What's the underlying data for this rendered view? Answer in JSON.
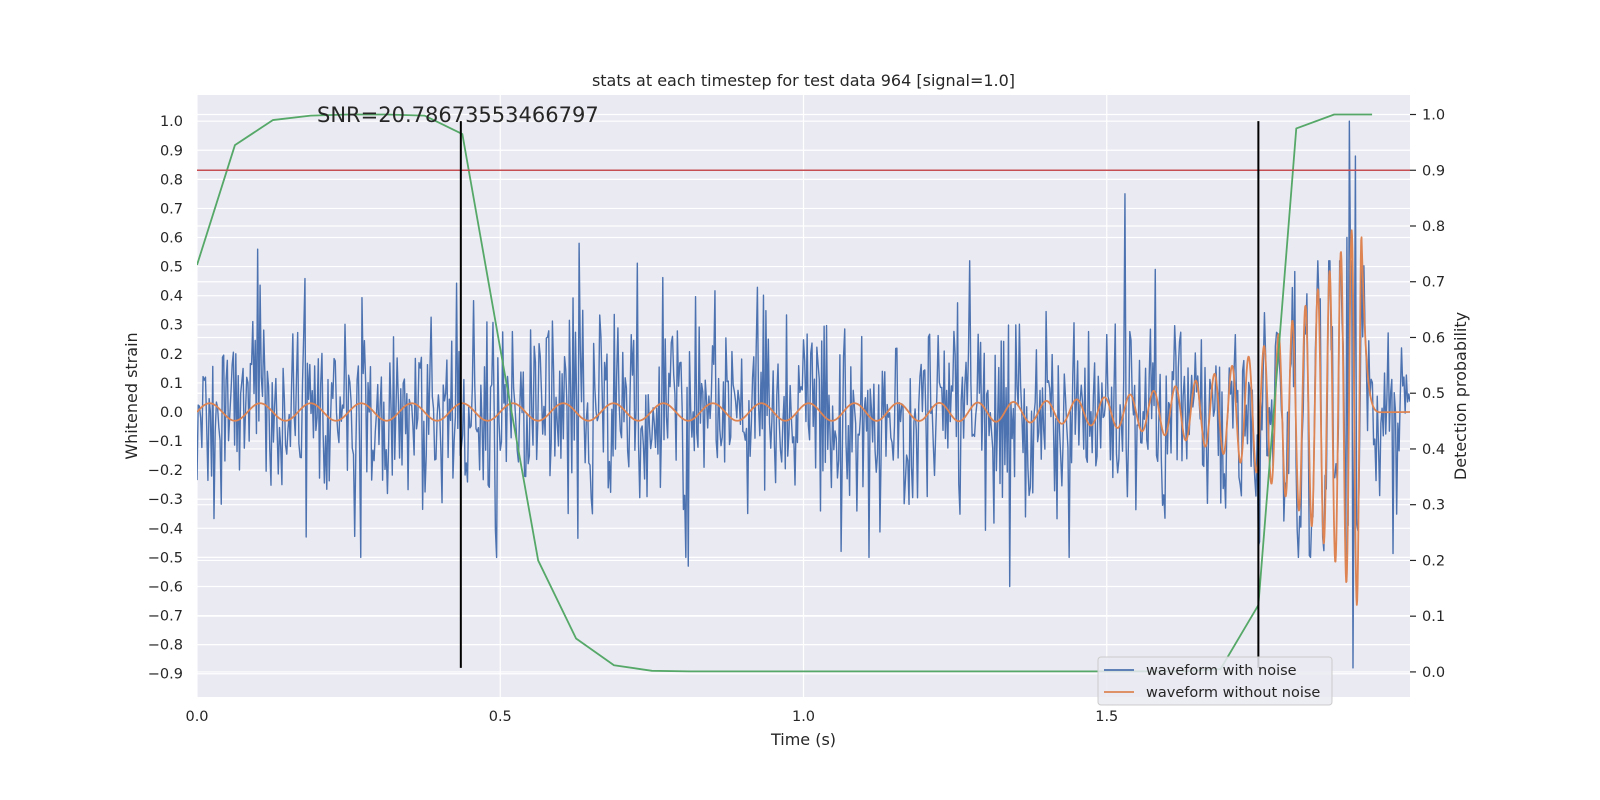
{
  "chart_data": {
    "type": "line",
    "title": "stats at each timestep for test data 964 [signal=1.0]",
    "annotation": "SNR=20.78673553466797",
    "xlabel": "Time (s)",
    "ylabel_left": "Whitened strain",
    "ylabel_right": "Detection probability",
    "xlim": [
      0,
      2.0
    ],
    "ylim_left": [
      -0.98,
      1.09
    ],
    "ylim_right": [
      -0.045,
      1.035
    ],
    "grid": true,
    "legend_placement": "lower-right",
    "x_ticks": [
      0.0,
      0.5,
      1.0,
      1.5
    ],
    "x_tick_labels": [
      "0.0",
      "0.5",
      "1.0",
      "1.5"
    ],
    "y_left_ticks": [
      1.0,
      0.9,
      0.8,
      0.7,
      0.6,
      0.5,
      0.4,
      0.3,
      0.2,
      0.1,
      0.0,
      -0.1,
      -0.2,
      -0.3,
      -0.4,
      -0.5,
      -0.6,
      -0.7,
      -0.8,
      -0.9
    ],
    "y_left_tick_labels": [
      "1.0",
      "0.9",
      "0.8",
      "0.7",
      "0.6",
      "0.5",
      "0.4",
      "0.3",
      "0.2",
      "0.1",
      "0.0",
      "−0.1",
      "−0.2",
      "−0.3",
      "−0.4",
      "−0.5",
      "−0.6",
      "−0.7",
      "−0.8",
      "−0.9"
    ],
    "y_right_ticks": [
      1.0,
      0.9,
      0.8,
      0.7,
      0.6,
      0.5,
      0.4,
      0.3,
      0.2,
      0.1,
      0.0
    ],
    "y_right_tick_labels": [
      "1.0",
      "0.9",
      "0.8",
      "0.7",
      "0.6",
      "0.5",
      "0.4",
      "0.3",
      "0.2",
      "0.1",
      "0.0"
    ],
    "threshold_line": {
      "axis": "right",
      "value": 0.9,
      "color": "#c44e52"
    },
    "vertical_lines": [
      {
        "x": 0.435,
        "y_range": [
          -0.88,
          1.0
        ],
        "color": "#000000"
      },
      {
        "x": 1.75,
        "y_range": [
          -0.88,
          1.0
        ],
        "color": "#000000"
      }
    ],
    "series": [
      {
        "name": "waveform with noise",
        "axis": "left",
        "color": "#4c72b0",
        "kind": "noise",
        "samples": 1000,
        "x_range": [
          0.0,
          2.0
        ],
        "std": 0.165,
        "spikes": [
          {
            "x": 0.1,
            "y": 0.56
          },
          {
            "x": 0.18,
            "y": -0.43
          },
          {
            "x": 0.27,
            "y": -0.5
          },
          {
            "x": 0.63,
            "y": 0.58
          },
          {
            "x": 0.81,
            "y": -0.53
          },
          {
            "x": 1.34,
            "y": -0.6
          },
          {
            "x": 1.53,
            "y": 0.75
          },
          {
            "x": 1.9,
            "y": 1.0
          },
          {
            "x": 1.905,
            "y": -0.88
          },
          {
            "x": 1.91,
            "y": 0.88
          },
          {
            "x": 1.895,
            "y": 0.6
          }
        ]
      },
      {
        "name": "waveform without noise",
        "axis": "left",
        "color": "#dd8452",
        "kind": "chirp",
        "x_range": [
          0.0,
          1.95
        ],
        "merger_time": 1.92,
        "f_start": 12,
        "f_end": 60,
        "amp_start": 0.03,
        "amp_peak": 0.7,
        "ringdown_end": 1.95,
        "tail_to": 2.0,
        "tail_value": 0.0
      },
      {
        "name": "detection probability",
        "axis": "right",
        "color": "#55a868",
        "kind": "line",
        "x": [
          0.0,
          0.0625,
          0.125,
          0.1875,
          0.25,
          0.3125,
          0.375,
          0.4375,
          0.5,
          0.5625,
          0.625,
          0.6875,
          0.75,
          0.8125,
          0.875,
          0.9375,
          1.0,
          1.0625,
          1.125,
          1.1875,
          1.25,
          1.3125,
          1.375,
          1.4375,
          1.5,
          1.5625,
          1.625,
          1.6875,
          1.75,
          1.8125,
          1.875,
          1.9375
        ],
        "y": [
          0.73,
          0.945,
          0.99,
          0.998,
          1.0,
          1.0,
          0.998,
          0.965,
          0.58,
          0.2,
          0.06,
          0.012,
          0.002,
          0.001,
          0.001,
          0.001,
          0.001,
          0.001,
          0.001,
          0.001,
          0.001,
          0.001,
          0.001,
          0.001,
          0.001,
          0.001,
          0.001,
          0.005,
          0.12,
          0.975,
          1.0,
          1.0
        ]
      }
    ]
  },
  "legend": {
    "items": [
      {
        "label": "waveform with noise",
        "color": "#4c72b0"
      },
      {
        "label": "waveform without noise",
        "color": "#dd8452"
      }
    ]
  },
  "colors": {
    "plot_background": "#eaeaf2",
    "grid": "#ffffff",
    "text": "#262626"
  }
}
